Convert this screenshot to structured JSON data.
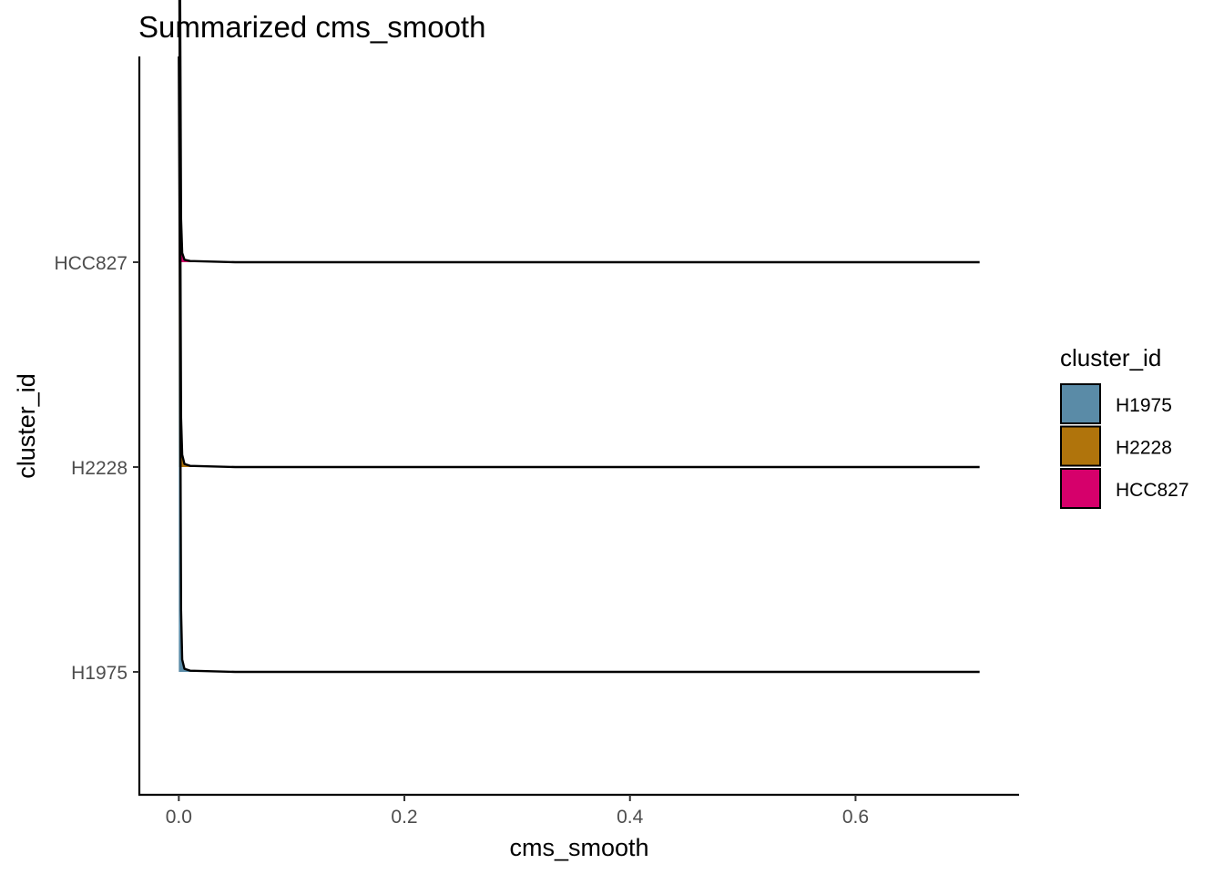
{
  "chart_data": {
    "type": "ridgeline",
    "title": "Summarized cms_smooth",
    "xlabel": "cms_smooth",
    "ylabel": "cluster_id",
    "xlim": [
      -0.035,
      0.745
    ],
    "x_ticks": [
      0.0,
      0.2,
      0.4,
      0.6
    ],
    "x_tick_labels": [
      "0.0",
      "0.2",
      "0.4",
      "0.6"
    ],
    "categories": [
      "H1975",
      "H2228",
      "HCC827"
    ],
    "x_max": 0.71,
    "series": [
      {
        "name": "H1975",
        "color": "#5a8ba7",
        "x": [
          0.0,
          0.001,
          0.002,
          0.003,
          0.005,
          0.01,
          0.05,
          0.71
        ],
        "density": [
          1.0,
          0.6,
          0.1,
          0.02,
          0.005,
          0.002,
          0.0,
          0.0
        ]
      },
      {
        "name": "H2228",
        "color": "#b0740c",
        "x": [
          0.0,
          0.001,
          0.002,
          0.003,
          0.005,
          0.01,
          0.05,
          0.71
        ],
        "density": [
          1.0,
          0.55,
          0.08,
          0.02,
          0.005,
          0.002,
          0.0,
          0.0
        ]
      },
      {
        "name": "HCC827",
        "color": "#d6006b",
        "x": [
          0.0,
          0.001,
          0.002,
          0.003,
          0.005,
          0.01,
          0.05,
          0.71
        ],
        "density": [
          1.0,
          0.5,
          0.07,
          0.015,
          0.004,
          0.002,
          0.0,
          0.0
        ]
      }
    ],
    "legend": {
      "title": "cluster_id",
      "position": "right",
      "entries": [
        {
          "label": "H1975",
          "color": "#5a8ba7"
        },
        {
          "label": "H2228",
          "color": "#b0740c"
        },
        {
          "label": "HCC827",
          "color": "#d6006b"
        }
      ]
    },
    "grid": false
  }
}
